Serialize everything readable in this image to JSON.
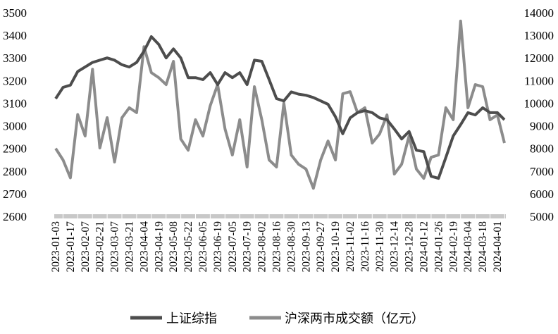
{
  "chart_data": {
    "type": "line",
    "title": "",
    "grid": false,
    "legend_placement": "bottom",
    "x_tick_labels": [
      "2023-01-03",
      "2023-01-17",
      "2023-02-07",
      "2023-02-21",
      "2023-03-07",
      "2023-03-21",
      "2023-04-04",
      "2023-04-19",
      "2023-05-08",
      "2023-05-22",
      "2023-06-05",
      "2023-06-19",
      "2023-07-05",
      "2023-07-19",
      "2023-08-02",
      "2023-08-16",
      "2023-08-30",
      "2023-09-13",
      "2023-09-27",
      "2023-10-19",
      "2023-11-02",
      "2023-11-16",
      "2023-11-30",
      "2023-12-14",
      "2023-12-28",
      "2024-01-12",
      "2024-01-26",
      "2024-02-19",
      "2024-03-04",
      "2024-03-18",
      "2024-04-01"
    ],
    "x": [
      "2023-01-03",
      "2023-01-10",
      "2023-01-17",
      "2023-01-31",
      "2023-02-07",
      "2023-02-14",
      "2023-02-21",
      "2023-02-28",
      "2023-03-07",
      "2023-03-14",
      "2023-03-21",
      "2023-03-28",
      "2023-04-04",
      "2023-04-12",
      "2023-04-19",
      "2023-04-26",
      "2023-05-08",
      "2023-05-15",
      "2023-05-22",
      "2023-05-29",
      "2023-06-05",
      "2023-06-12",
      "2023-06-19",
      "2023-06-28",
      "2023-07-05",
      "2023-07-12",
      "2023-07-19",
      "2023-07-26",
      "2023-08-02",
      "2023-08-09",
      "2023-08-16",
      "2023-08-23",
      "2023-08-30",
      "2023-09-06",
      "2023-09-13",
      "2023-09-20",
      "2023-09-27",
      "2023-10-12",
      "2023-10-19",
      "2023-10-26",
      "2023-11-02",
      "2023-11-09",
      "2023-11-16",
      "2023-11-23",
      "2023-11-30",
      "2023-12-07",
      "2023-12-14",
      "2023-12-21",
      "2023-12-28",
      "2024-01-05",
      "2024-01-12",
      "2024-01-19",
      "2024-01-26",
      "2024-02-02",
      "2024-02-19",
      "2024-02-26",
      "2024-03-04",
      "2024-03-11",
      "2024-03-18",
      "2024-03-25",
      "2024-04-01",
      "2024-04-09"
    ],
    "left_axis": {
      "range": [
        2600,
        3500
      ],
      "ticks": [
        "2600",
        "2700",
        "2800",
        "2900",
        "3000",
        "3100",
        "3200",
        "3300",
        "3400",
        "3500"
      ]
    },
    "right_axis": {
      "range": [
        5000,
        14000
      ],
      "ticks": [
        "5000",
        "6000",
        "7000",
        "8000",
        "9000",
        "10000",
        "11000",
        "12000",
        "13000",
        "14000"
      ]
    },
    "series": [
      {
        "name": "上证综指",
        "axis": "left",
        "color": "#4d4d4d",
        "values": [
          3120,
          3170,
          3180,
          3240,
          3260,
          3280,
          3290,
          3300,
          3290,
          3270,
          3260,
          3280,
          3330,
          3394,
          3360,
          3300,
          3340,
          3300,
          3213,
          3213,
          3204,
          3235,
          3182,
          3235,
          3213,
          3235,
          3182,
          3290,
          3285,
          3204,
          3120,
          3110,
          3150,
          3140,
          3135,
          3125,
          3110,
          3095,
          3040,
          2965,
          3035,
          3058,
          3067,
          3058,
          3035,
          3027,
          2986,
          2942,
          2975,
          2892,
          2886,
          2777,
          2768,
          2860,
          2955,
          3005,
          3058,
          3048,
          3080,
          3058,
          3058,
          3027
        ]
      },
      {
        "name": "沪深两市成交额（亿元）",
        "axis": "right",
        "color": "#8c8c8c",
        "values": [
          8000,
          7490,
          6700,
          9500,
          8550,
          11500,
          8020,
          9360,
          7400,
          9360,
          9800,
          9580,
          12500,
          11350,
          11130,
          10820,
          11850,
          8420,
          7920,
          9270,
          8550,
          9890,
          10820,
          8860,
          7710,
          9270,
          7180,
          10730,
          9270,
          7490,
          7180,
          10000,
          7710,
          7300,
          7090,
          6240,
          7490,
          8330,
          7490,
          10420,
          10510,
          9580,
          9800,
          8240,
          8640,
          9480,
          6870,
          7300,
          8550,
          7090,
          6680,
          7610,
          7710,
          9800,
          9270,
          13630,
          9800,
          10820,
          10730,
          9270,
          9480,
          8240
        ]
      }
    ]
  }
}
